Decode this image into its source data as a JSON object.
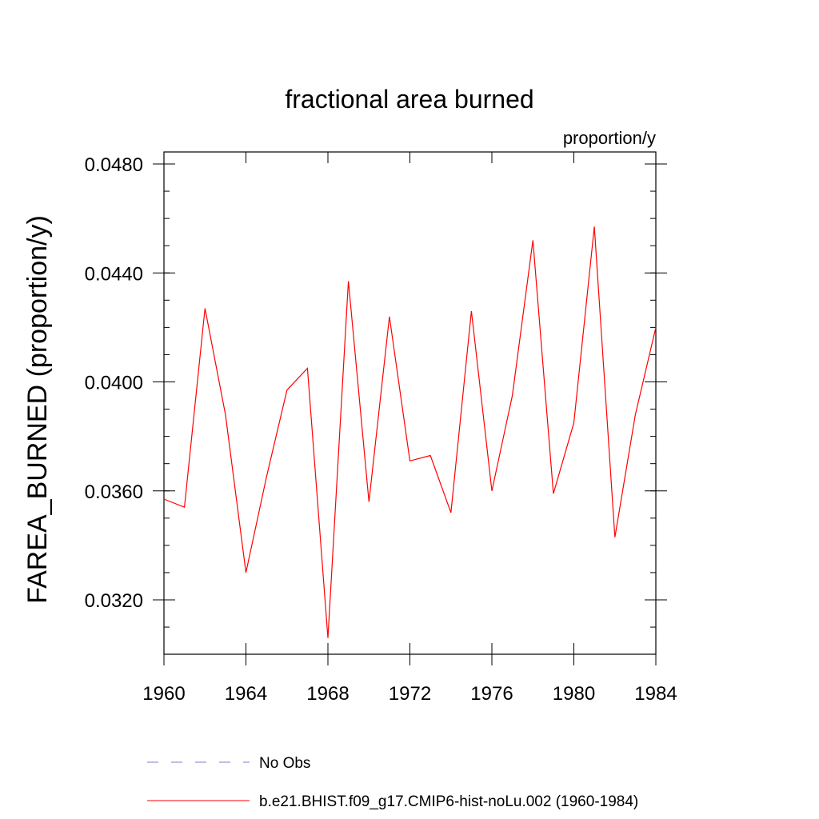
{
  "chart_data": {
    "type": "line",
    "title": "fractional area burned",
    "units_label": "proportion/y",
    "xlabel": "",
    "ylabel": "FAREA_BURNED  (proportion/y)",
    "xlim": [
      1960,
      1984
    ],
    "ylim": [
      0.03,
      0.0485
    ],
    "x_ticks": [
      1960,
      1964,
      1968,
      1972,
      1976,
      1980,
      1984
    ],
    "x_tick_labels": [
      "1960",
      "1964",
      "1968",
      "1972",
      "1976",
      "1980",
      "1984"
    ],
    "y_ticks": [
      0.032,
      0.036,
      0.04,
      0.044,
      0.048
    ],
    "y_tick_labels": [
      "0.0320",
      "0.0360",
      "0.0400",
      "0.0440",
      "0.0480"
    ],
    "grid": false,
    "legend_position": "bottom",
    "series": [
      {
        "name": "b.e21.BHIST.f09_g17.CMIP6-hist-noLu.002 (1960-1984)",
        "color": "#ff0000",
        "style": "solid",
        "x": [
          1960,
          1961,
          1962,
          1963,
          1964,
          1965,
          1966,
          1967,
          1968,
          1969,
          1970,
          1971,
          1972,
          1973,
          1974,
          1975,
          1976,
          1977,
          1978,
          1979,
          1980,
          1981,
          1982,
          1983,
          1984
        ],
        "values": [
          0.0357,
          0.0354,
          0.0427,
          0.0388,
          0.033,
          0.0365,
          0.0397,
          0.0405,
          0.0306,
          0.0437,
          0.0356,
          0.0424,
          0.0371,
          0.0373,
          0.0352,
          0.0426,
          0.036,
          0.0395,
          0.0452,
          0.0359,
          0.0385,
          0.0457,
          0.0343,
          0.0388,
          0.042
        ]
      }
    ],
    "legend": [
      {
        "label": "No Obs",
        "color": "#7b7bc8",
        "style": "dashed"
      },
      {
        "label": "b.e21.BHIST.f09_g17.CMIP6-hist-noLu.002 (1960-1984)",
        "color": "#ff0000",
        "style": "solid"
      }
    ]
  }
}
